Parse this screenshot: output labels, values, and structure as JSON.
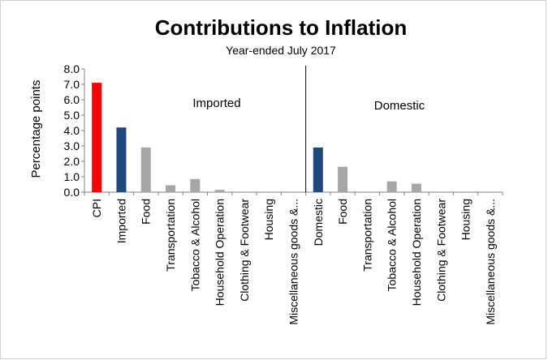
{
  "chart_data": {
    "type": "bar",
    "title": "Contributions to Inflation",
    "subtitle": "Year-ended July 2017",
    "ylabel": "Percentage points",
    "xlabel": "",
    "ylim": [
      0,
      8
    ],
    "yticks": [
      "0.0",
      "1.0",
      "2.0",
      "3.0",
      "4.0",
      "5.0",
      "6.0",
      "7.0",
      "8.0"
    ],
    "grid": false,
    "legend": "none",
    "annotations": [
      "Imported",
      "Domestic"
    ],
    "categories": [
      "CPI",
      "Imported",
      "Food",
      "Transportation",
      "Tobacco & Alcohol",
      "Household Operation",
      "Clothing & Footwear",
      "Housing",
      "Miscellaneous goods &...",
      "Domestic",
      "Food",
      "Transportation",
      "Tobacco & Alcohol",
      "Household Operation",
      "Clothing & Footwear",
      "Housing",
      "Miscellaneous goods &..."
    ],
    "values": [
      7.1,
      4.2,
      2.9,
      0.45,
      0.85,
      0.15,
      0.0,
      0.0,
      0.0,
      2.9,
      1.65,
      0.0,
      0.7,
      0.55,
      0.0,
      0.0,
      0.0
    ],
    "bar_colors": [
      "#ff0000",
      "#1f497d",
      "#a6a6a6",
      "#a6a6a6",
      "#a6a6a6",
      "#a6a6a6",
      "#a6a6a6",
      "#a6a6a6",
      "#a6a6a6",
      "#1f497d",
      "#a6a6a6",
      "#a6a6a6",
      "#a6a6a6",
      "#a6a6a6",
      "#a6a6a6",
      "#a6a6a6",
      "#a6a6a6"
    ],
    "divider_after_category_index": 8
  }
}
